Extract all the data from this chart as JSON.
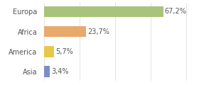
{
  "categories": [
    "Asia",
    "America",
    "Africa",
    "Europa"
  ],
  "values": [
    3.4,
    5.7,
    23.7,
    67.2
  ],
  "labels": [
    "3,4%",
    "5,7%",
    "23,7%",
    "67,2%"
  ],
  "colors": [
    "#7b8ec8",
    "#e8c84a",
    "#e8a96b",
    "#a8c47a"
  ],
  "background_color": "#ffffff",
  "plot_bg_color": "#ffffff",
  "xlim": [
    0,
    85
  ],
  "bar_height": 0.55,
  "label_fontsize": 7.0,
  "category_fontsize": 7.0,
  "grid_color": "#d8d8d8",
  "text_color": "#555555",
  "xticks": [
    0,
    20,
    40,
    60,
    80
  ]
}
